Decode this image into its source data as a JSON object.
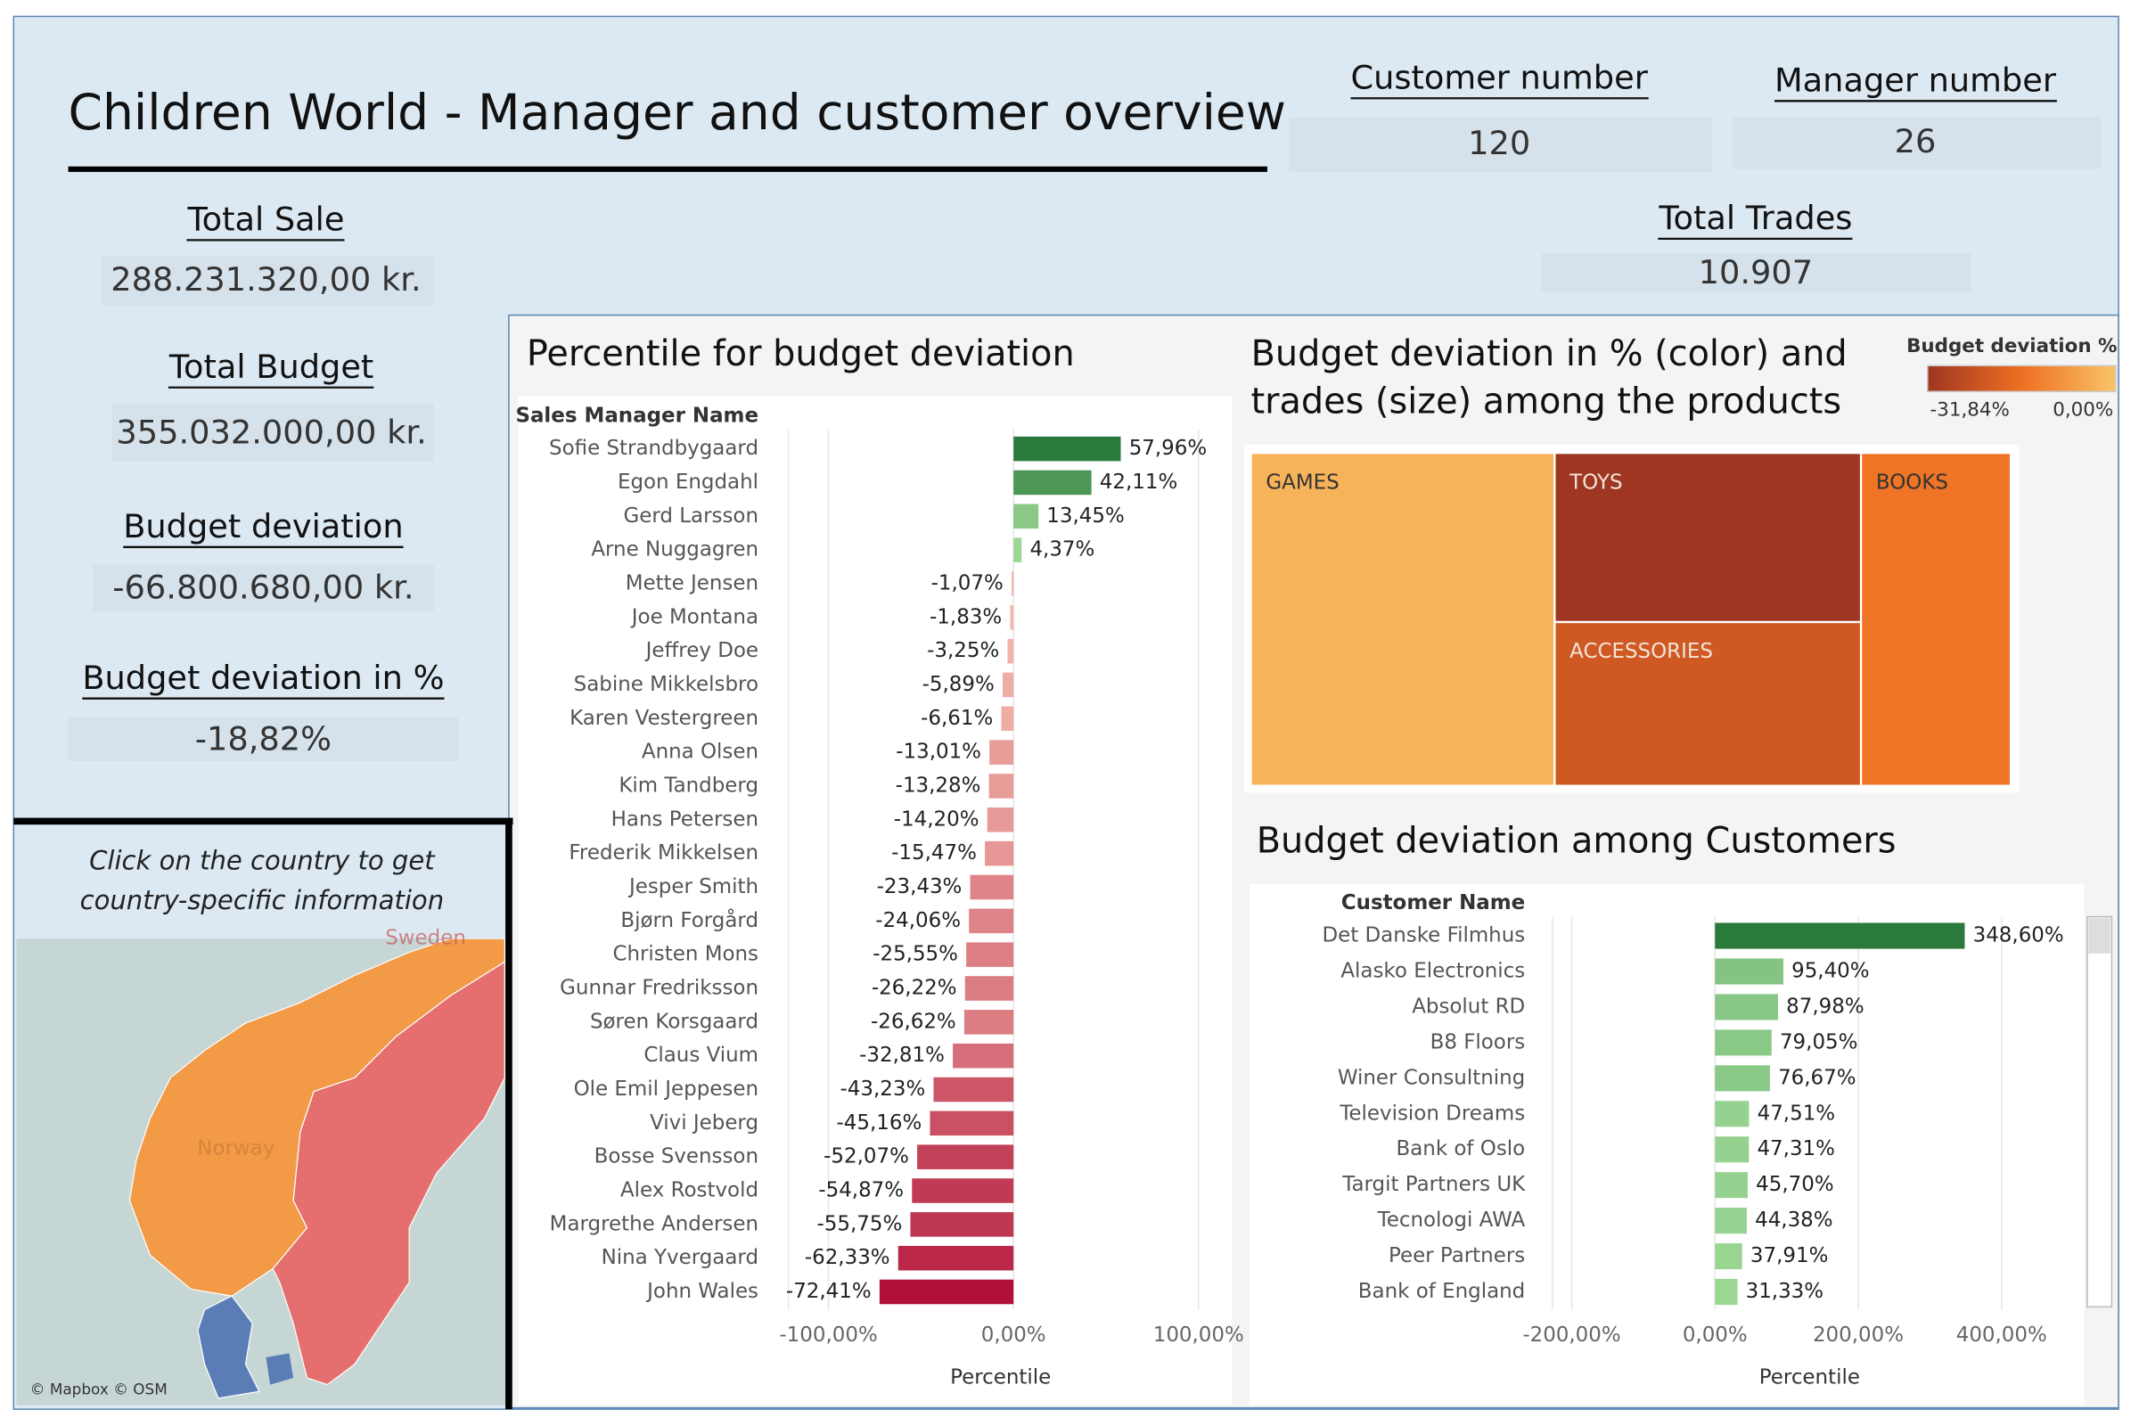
{
  "header": {
    "title": "Children World - Manager and customer overview"
  },
  "kpis": [
    {
      "label": "Customer number",
      "value": 120
    },
    {
      "label": "Manager number",
      "value": 26
    },
    {
      "label": "Total Sale",
      "value": "288.231.320,00 kr."
    },
    {
      "label": "Total Budget",
      "value": "355.032.000,00 kr."
    },
    {
      "label": "Budget deviation",
      "value": "-66.800.680,00 kr."
    },
    {
      "label": "Budget deviation in %",
      "value": "-18,82%"
    },
    {
      "label": "Total Trades",
      "value": "10.907"
    }
  ],
  "map": {
    "instruction": [
      "Click on the country to get",
      "country-specific information"
    ],
    "labels": [
      "Norway",
      "Sweden"
    ],
    "attribution": "© Mapbox © OSM"
  },
  "chart_data": [
    {
      "type": "hbar",
      "title": "Percentile for budget deviation",
      "category_header": "Sales Manager Name",
      "x_label": "Percentile",
      "categories": [
        "Sofie Strandbygaard",
        "Egon Engdahl",
        "Gerd Larsson",
        "Arne Nuggagren",
        "Mette Jensen",
        "Joe Montana",
        "Jeffrey Doe",
        "Sabine Mikkelsbro",
        "Karen Vestergreen",
        "Anna Olsen",
        "Kim Tandberg",
        "Hans Petersen",
        "Frederik Mikkelsen",
        "Jesper Smith",
        "Bjørn Forgård",
        "Christen Mons",
        "Gunnar Fredriksson",
        "Søren Korsgaard",
        "Claus Vium",
        "Ole Emil Jeppesen",
        "Vivi Jeberg",
        "Bosse Svensson",
        "Alex Rostvold",
        "Margrethe Andersen",
        "Nina Yvergaard",
        "John Wales"
      ],
      "values": [
        57.96,
        42.11,
        13.45,
        4.37,
        -1.07,
        -1.83,
        -3.25,
        -5.89,
        -6.61,
        -13.01,
        -13.28,
        -14.2,
        -15.47,
        -23.43,
        -24.06,
        -25.55,
        -26.22,
        -26.62,
        -32.81,
        -43.23,
        -45.16,
        -52.07,
        -54.87,
        -55.75,
        -62.33,
        -72.41
      ],
      "value_labels": [
        "57,96%",
        "42,11%",
        "13,45%",
        "4,37%",
        "-1,07%",
        "-1,83%",
        "-3,25%",
        "-5,89%",
        "-6,61%",
        "-13,01%",
        "-13,28%",
        "-14,20%",
        "-15,47%",
        "-23,43%",
        "-24,06%",
        "-25,55%",
        "-26,22%",
        "-26,62%",
        "-32,81%",
        "-43,23%",
        "-45,16%",
        "-52,07%",
        "-54,87%",
        "-55,75%",
        "-62,33%",
        "-72,41%"
      ],
      "colors": {
        "positive": [
          "#a6df9c",
          "#2a7a3b"
        ],
        "negative": [
          "#f5bcae",
          "#b00f38"
        ]
      },
      "xlim": [
        -129,
        118
      ],
      "xticks": [
        {
          "value": -100,
          "label": "-100,00%"
        },
        {
          "value": 0,
          "label": "0,00%"
        },
        {
          "value": 100,
          "label": "100,00%"
        }
      ],
      "grid": true
    },
    {
      "type": "treemap",
      "title": [
        "Budget deviation in % (color) and",
        "trades (size) among the products"
      ],
      "legend_title": "Budget deviation %",
      "categories": [
        "GAMES",
        "TOYS",
        "ACCESSORIES",
        "BOOKS"
      ],
      "values": [
        4360,
        2235,
        2163,
        2150
      ],
      "color_values": [
        -3.2,
        -31.84,
        -22,
        -15
      ],
      "color_lim": [
        {
          "value": -31.84,
          "label": "-31,84%"
        },
        {
          "value": 0,
          "label": "0,00%"
        }
      ],
      "color_range": [
        "#9e3621",
        "#ee6f22",
        "#f9c468"
      ]
    },
    {
      "type": "hbar",
      "title": "Budget deviation among Customers",
      "category_header": "Customer Name",
      "x_label": "Percentile",
      "categories": [
        "Det Danske Filmhus",
        "Alasko Electronics",
        "Absolut RD",
        "B8 Floors",
        "Winer Consultning",
        "Television Dreams",
        "Bank of Oslo",
        "Targit Partners UK",
        "Tecnologi AWA",
        "Peer Partners",
        "Bank of England"
      ],
      "values": [
        348.6,
        95.4,
        87.98,
        79.05,
        76.67,
        47.51,
        47.31,
        45.7,
        44.38,
        37.91,
        31.33
      ],
      "value_labels": [
        "348,60%",
        "95,40%",
        "87,98%",
        "79,05%",
        "76,67%",
        "47,51%",
        "47,31%",
        "45,70%",
        "44,38%",
        "37,91%",
        "31,33%"
      ],
      "colors": {
        "positive": [
          "#a6df9c",
          "#2a7a3b"
        ],
        "negative": [
          "#f5bcae",
          "#b00f38"
        ]
      },
      "xlim": [
        -246,
        510
      ],
      "xticks": [
        {
          "value": -200,
          "label": "-200,00%"
        },
        {
          "value": 0,
          "label": "0,00%"
        },
        {
          "value": 200,
          "label": "200,00%"
        },
        {
          "value": 400,
          "label": "400,00%"
        }
      ],
      "grid": true
    }
  ]
}
